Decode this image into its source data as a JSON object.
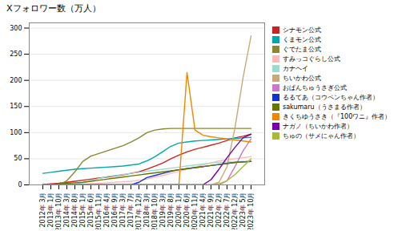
{
  "chart_data": {
    "type": "line",
    "title": "Xフォロワー数（万人）",
    "categories": [
      "2012年\n3月",
      "2013年\n1月",
      "2013年\n10月",
      "2014年\n3月",
      "2014年\n8月",
      "2015年\n1月",
      "2015年\n6月",
      "2015年\n11月",
      "2016年\n4月",
      "2016年\n9月",
      "2017年\n3月",
      "2017年\n7月",
      "2017年\n12月",
      "2018年\n3月",
      "2018年\n10月",
      "2019年\n3月",
      "2019年\n8月",
      "2020年\n1月",
      "2020年\n6月",
      "2020年\n11月",
      "2021年\n4月",
      "2021年\n9月",
      "2022年\n2月",
      "2022年\n7月",
      "2022年\n12月",
      "2023年\n5月",
      "2023年\n10月"
    ],
    "series": [
      {
        "name": "シナモン公式",
        "color": "#cc2222",
        "values": [
          1,
          2,
          3,
          5,
          7,
          9,
          11,
          13,
          15,
          17,
          19,
          22,
          25,
          30,
          36,
          42,
          50,
          57,
          63,
          68,
          72,
          76,
          80,
          85,
          90,
          93,
          97
        ]
      },
      {
        "name": "くまモン公式",
        "color": "#00aaaa",
        "values": [
          22,
          24,
          26,
          28,
          30,
          31,
          32,
          33,
          34,
          35,
          36,
          38,
          40,
          46,
          54,
          64,
          74,
          80,
          82,
          84,
          85,
          86,
          87,
          88,
          89,
          90,
          91
        ]
      },
      {
        "name": "ぐでたま公式",
        "color": "#888833",
        "values": [
          0,
          0,
          0,
          8,
          25,
          45,
          55,
          60,
          65,
          70,
          75,
          82,
          90,
          100,
          105,
          107,
          108,
          108,
          108,
          108,
          108,
          108,
          108,
          108,
          108,
          108,
          108
        ]
      },
      {
        "name": "すみっコぐらし公式",
        "color": "#ffbbbb",
        "values": [
          0,
          0,
          0,
          0,
          0,
          1,
          2,
          3,
          4,
          5,
          6,
          7,
          9,
          11,
          15,
          18,
          22,
          26,
          30,
          34,
          38,
          42,
          46,
          48,
          50,
          52,
          54
        ]
      },
      {
        "name": "カナヘイ",
        "color": "#99ddcc",
        "values": [
          0,
          0,
          0,
          1,
          2,
          4,
          8,
          12,
          16,
          18,
          20,
          22,
          24,
          26,
          28,
          30,
          32,
          34,
          36,
          38,
          40,
          42,
          43,
          44,
          44,
          45,
          45
        ]
      },
      {
        "name": "ちいかわ公式",
        "color": "#c9a87a",
        "values": [
          0,
          0,
          0,
          0,
          0,
          0,
          0,
          0,
          0,
          0,
          0,
          0,
          0,
          0,
          0,
          0,
          0,
          0,
          0,
          0,
          0,
          0,
          5,
          35,
          110,
          205,
          285
        ]
      },
      {
        "name": "おぱんちゅうさぎ公式",
        "color": "#cc77cc",
        "values": [
          0,
          0,
          0,
          0,
          0,
          0,
          0,
          0,
          0,
          0,
          0,
          0,
          0,
          0,
          0,
          0,
          0,
          0,
          0,
          0,
          0,
          0,
          0,
          8,
          35,
          65,
          88
        ]
      },
      {
        "name": "るるてあ（コウペンちゃん作者）",
        "color": "#1133cc",
        "values": [
          0,
          0,
          0,
          0,
          0,
          0,
          0,
          0,
          0,
          0,
          0,
          0,
          5,
          14,
          18,
          22,
          26,
          29,
          31,
          33,
          35,
          37,
          39,
          41,
          43,
          44,
          45
        ]
      },
      {
        "name": "sakumaru（うさまる作者）",
        "color": "#667700",
        "values": [
          0,
          1,
          2,
          3,
          4,
          5,
          7,
          9,
          11,
          13,
          15,
          17,
          19,
          21,
          23,
          25,
          27,
          29,
          31,
          33,
          35,
          37,
          39,
          41,
          43,
          44,
          45
        ]
      },
      {
        "name": "きくちゆうさき（『100ワニ』作者）",
        "color": "#ee8800",
        "values": [
          0,
          0,
          0,
          0,
          0,
          0,
          0,
          0,
          0,
          0,
          0,
          0,
          0,
          0,
          0,
          0,
          0,
          1,
          215,
          105,
          95,
          92,
          90,
          88,
          86,
          84,
          82
        ]
      },
      {
        "name": "ナガノ（ちいかわ作者）",
        "color": "#7700aa",
        "values": [
          0,
          0,
          0,
          0,
          0,
          0,
          0,
          0,
          0,
          0,
          0,
          0,
          0,
          0,
          0,
          0,
          0,
          0,
          0,
          0,
          0,
          10,
          30,
          52,
          72,
          90,
          97
        ]
      },
      {
        "name": "ちゅの（サメにゃん作者）",
        "color": "#aabb33",
        "values": [
          0,
          0,
          0,
          0,
          0,
          0,
          0,
          0,
          0,
          0,
          0,
          0,
          0,
          0,
          0,
          0,
          0,
          0,
          0,
          0,
          0,
          0,
          2,
          8,
          20,
          35,
          50
        ]
      }
    ],
    "ylim": [
      0,
      310
    ],
    "yticks": [
      0,
      50,
      100,
      150,
      200,
      250,
      300
    ],
    "grid": true,
    "legend": "right"
  }
}
